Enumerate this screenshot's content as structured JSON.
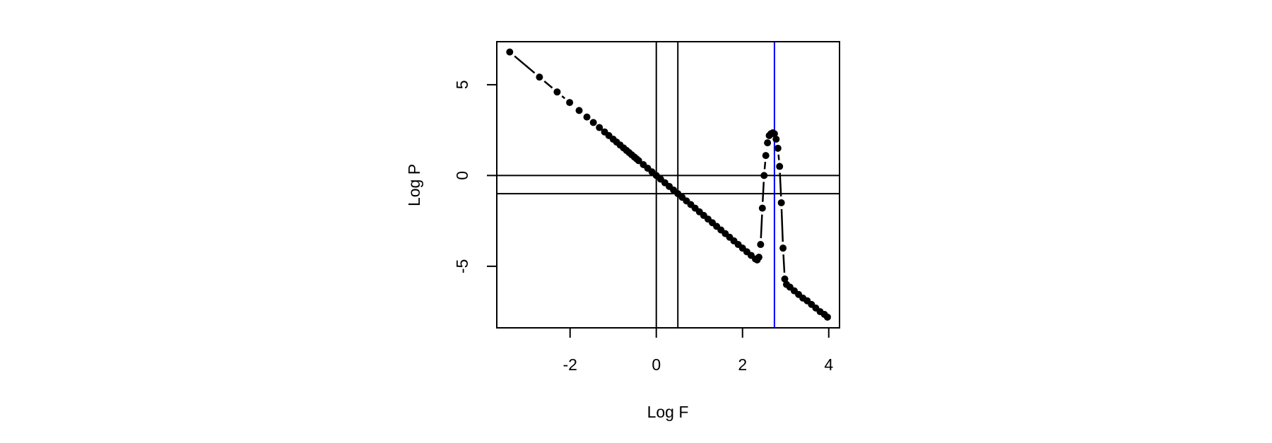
{
  "chart_data": {
    "type": "line",
    "x_label": "Log F",
    "y_label": "Log P",
    "xlim": [
      -3.7,
      4.25
    ],
    "ylim": [
      -8.39,
      7.37
    ],
    "xticks": [
      -2,
      0,
      2,
      4
    ],
    "yticks": [
      -5,
      0,
      5
    ],
    "vlines": [
      {
        "value": 0,
        "color": "#000000"
      },
      {
        "value": 0.5,
        "color": "#000000"
      },
      {
        "value": 2.74,
        "color": "#0000ff"
      }
    ],
    "hlines": [
      {
        "value": 0,
        "color": "#000000"
      },
      {
        "value": -1,
        "color": "#000000"
      }
    ],
    "series": [
      {
        "color": "#000000",
        "x": [
          -3.4,
          -2.71,
          -2.3,
          -2.01,
          -1.79,
          -1.61,
          -1.46,
          -1.32,
          -1.2,
          -1.1,
          -1.0,
          -0.92,
          -0.84,
          -0.76,
          -0.69,
          -0.63,
          -0.57,
          -0.51,
          -0.46,
          -0.41,
          -0.3,
          -0.2,
          -0.1,
          0.0,
          0.1,
          0.2,
          0.3,
          0.4,
          0.5,
          0.6,
          0.7,
          0.8,
          0.9,
          1.0,
          1.1,
          1.2,
          1.3,
          1.4,
          1.5,
          1.6,
          1.7,
          1.8,
          1.9,
          2.0,
          2.1,
          2.2,
          2.3,
          2.34,
          2.38,
          2.42,
          2.46,
          2.5,
          2.54,
          2.58,
          2.62,
          2.66,
          2.7,
          2.74,
          2.78,
          2.82,
          2.86,
          2.9,
          2.94,
          2.98,
          3.02,
          3.1,
          3.2,
          3.3,
          3.4,
          3.5,
          3.6,
          3.7,
          3.8,
          3.9,
          3.97
        ],
        "values": [
          6.8,
          5.42,
          4.6,
          4.02,
          3.58,
          3.22,
          2.92,
          2.64,
          2.4,
          2.2,
          2.0,
          1.84,
          1.68,
          1.52,
          1.38,
          1.26,
          1.14,
          1.02,
          0.92,
          0.82,
          0.6,
          0.4,
          0.2,
          0.0,
          -0.2,
          -0.4,
          -0.6,
          -0.8,
          -1.0,
          -1.2,
          -1.4,
          -1.6,
          -1.8,
          -2.0,
          -2.2,
          -2.4,
          -2.6,
          -2.8,
          -3.0,
          -3.2,
          -3.4,
          -3.6,
          -3.8,
          -4.0,
          -4.2,
          -4.4,
          -4.6,
          -4.65,
          -4.5,
          -3.8,
          -1.8,
          0.0,
          1.1,
          1.8,
          2.2,
          2.3,
          2.35,
          2.3,
          2.0,
          1.5,
          0.5,
          -1.5,
          -4.0,
          -5.7,
          -6.0,
          -6.15,
          -6.35,
          -6.55,
          -6.75,
          -6.9,
          -7.1,
          -7.3,
          -7.5,
          -7.65,
          -7.8
        ]
      }
    ]
  }
}
